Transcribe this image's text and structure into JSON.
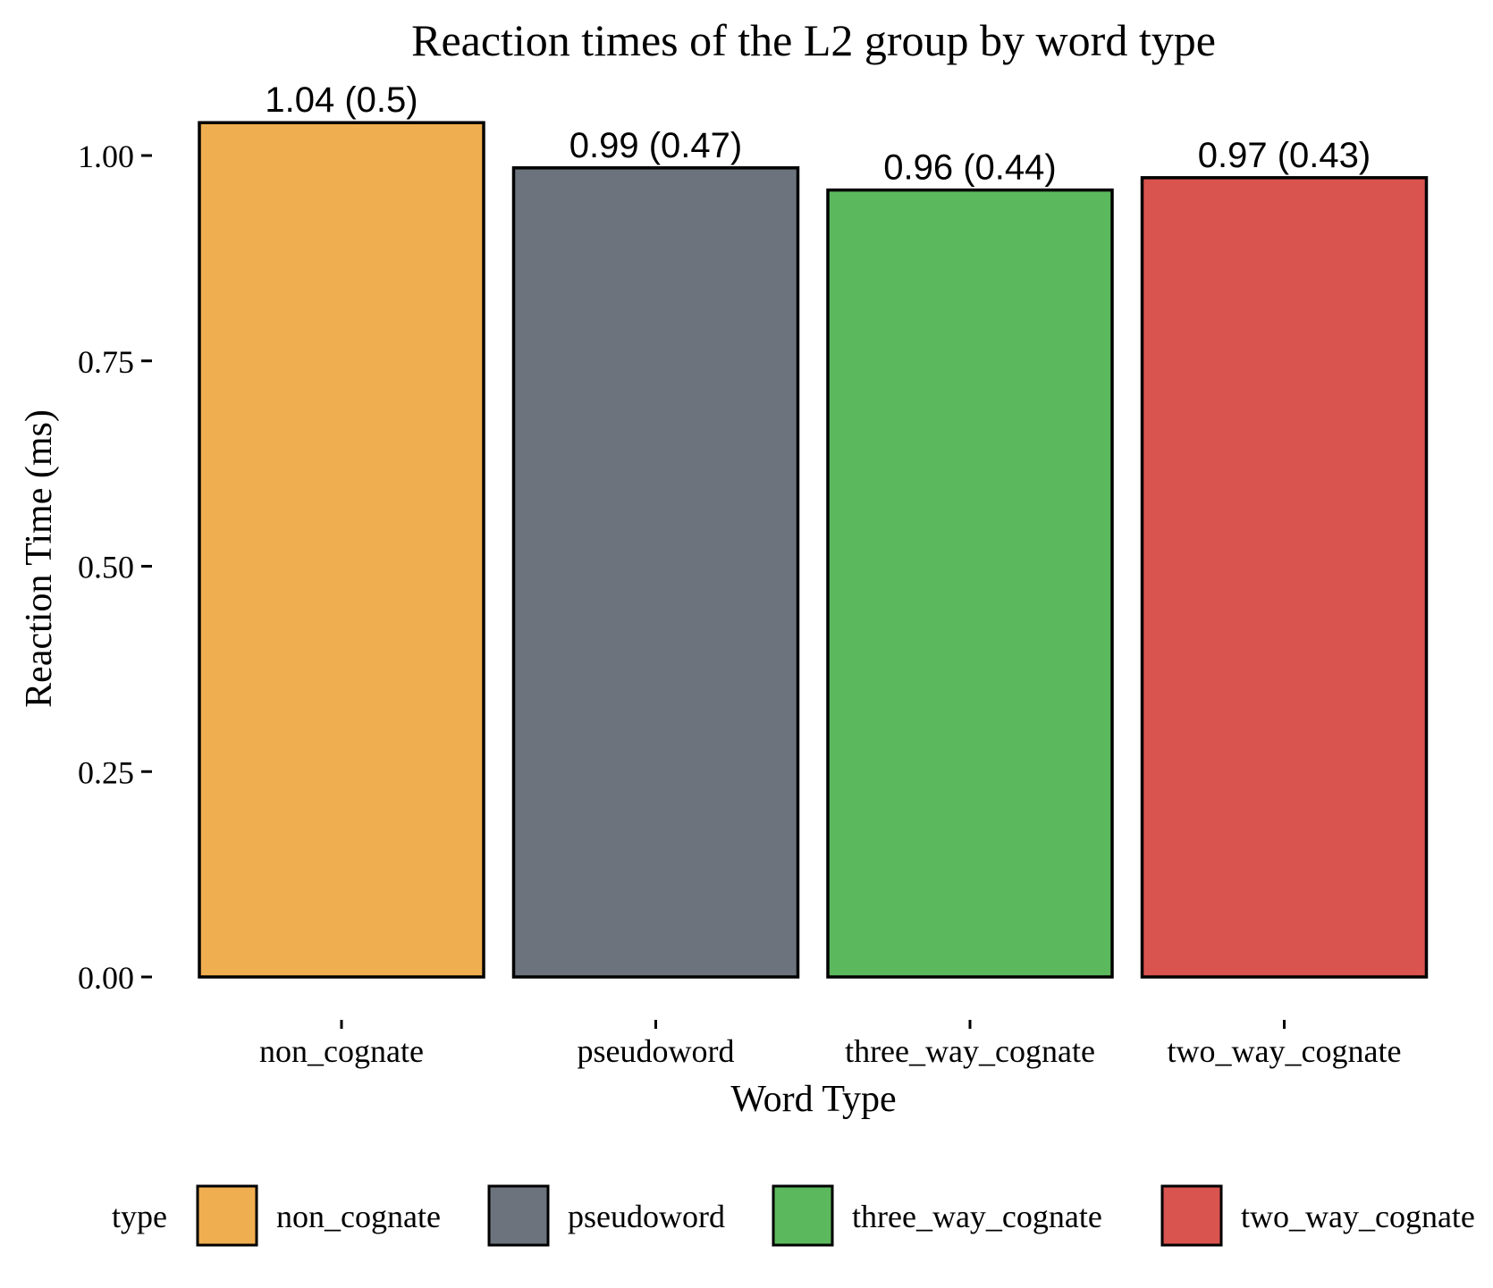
{
  "chart_data": {
    "type": "bar",
    "title": "Reaction times of the L2 group by word type",
    "xlabel": "Word Type",
    "ylabel": "Reaction Time (ms)",
    "ylim": [
      0,
      1.04
    ],
    "yticks": [
      "0.00",
      "0.25",
      "0.50",
      "0.75",
      "1.00"
    ],
    "ytick_values": [
      0,
      0.25,
      0.5,
      0.75,
      1.0
    ],
    "categories": [
      "non_cognate",
      "pseudoword",
      "three_way_cognate",
      "two_way_cognate"
    ],
    "values": [
      1.04,
      0.985,
      0.958,
      0.973
    ],
    "data_labels": [
      "1.04 (0.5)",
      "0.99 (0.47)",
      "0.96 (0.44)",
      "0.97 (0.43)"
    ],
    "colors": [
      "#EFAE4F",
      "#6C737D",
      "#5CB85C",
      "#D9534F"
    ],
    "grid": false,
    "legend": {
      "title": "type",
      "position": "bottom",
      "entries": [
        "non_cognate",
        "pseudoword",
        "three_way_cognate",
        "two_way_cognate"
      ]
    }
  }
}
